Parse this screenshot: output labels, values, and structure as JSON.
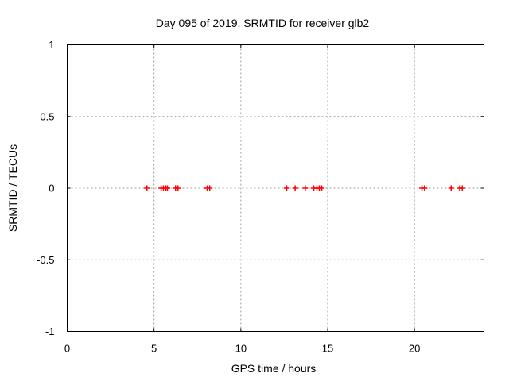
{
  "colors": {
    "background": "#ffffff",
    "axis": "#000000",
    "grid": "#9e9e9e",
    "marker": "#ff0000",
    "text": "#000000"
  },
  "chart_data": {
    "type": "scatter",
    "title": "Day 095 of 2019, SRMTID for receiver glb2",
    "xlabel": "GPS time / hours",
    "ylabel": "SRMTID / TECUs",
    "xlim": [
      0,
      24
    ],
    "ylim": [
      -1,
      1
    ],
    "xticks": [
      0,
      5,
      10,
      15,
      20
    ],
    "xtick_labels": [
      "0",
      "5",
      "10",
      "15",
      "20"
    ],
    "yticks": [
      1,
      0.5,
      0,
      -0.5,
      -1
    ],
    "ytick_labels": [
      "1",
      "0.5",
      "0",
      "-0.5",
      "-1"
    ],
    "grid": true,
    "legend": "none",
    "marker": {
      "shape": "plus",
      "color": "#ff0000",
      "size": 7
    },
    "series": [
      {
        "name": "SRMTID",
        "x": [
          4.59,
          5.41,
          5.54,
          5.68,
          5.77,
          6.24,
          6.38,
          8.06,
          8.21,
          12.64,
          13.13,
          13.71,
          14.2,
          14.38,
          14.52,
          14.66,
          20.43,
          20.58,
          22.11,
          22.6,
          22.75
        ],
        "y": [
          0,
          0,
          0,
          0,
          0,
          0,
          0,
          0,
          0,
          0,
          0,
          0,
          0,
          0,
          0,
          0,
          0,
          0,
          0,
          0,
          0
        ]
      }
    ]
  }
}
